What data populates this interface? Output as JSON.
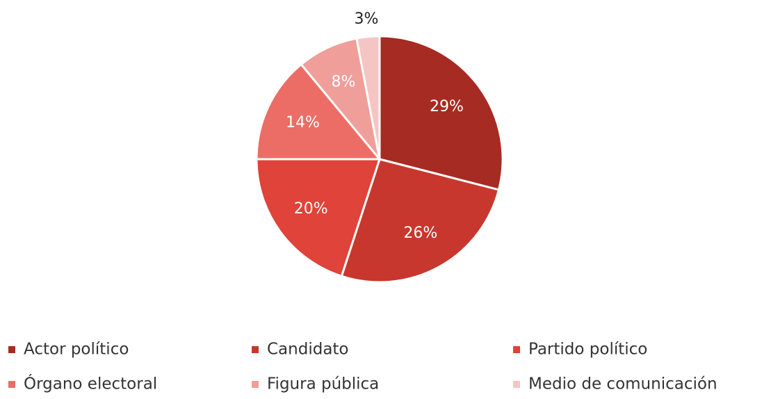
{
  "chart_data": {
    "type": "pie",
    "categories": [
      "Actor político",
      "Candidato",
      "Partido político",
      "Órgano electoral",
      "Figura pública",
      "Medio de comunicación"
    ],
    "values": [
      29,
      26,
      20,
      14,
      8,
      3
    ],
    "value_labels": [
      "29%",
      "26%",
      "20%",
      "14%",
      "8%",
      "3%"
    ],
    "colors": [
      "#a62b22",
      "#c8372d",
      "#df4339",
      "#ec6d65",
      "#f09e9a",
      "#f5c5c3"
    ],
    "legend": "bottom"
  }
}
